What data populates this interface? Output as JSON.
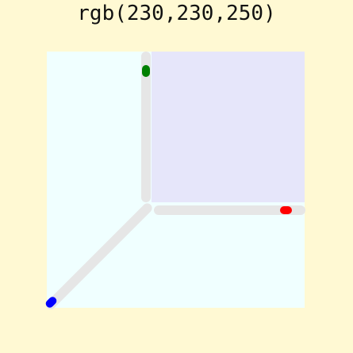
{
  "title": "rgb(230,230,250)",
  "color": {
    "r": 230,
    "g": 230,
    "b": 250,
    "hex": "#e6e6fa"
  },
  "colors": {
    "page_background": "#fff9d3",
    "picker_background": "#f0ffff",
    "track": "#e6e6e6",
    "red_handle": "#ff0000",
    "green_handle": "#008000",
    "blue_handle": "#0000ff"
  },
  "sliders": {
    "red": {
      "label": "red",
      "value": 230,
      "max": 255
    },
    "green": {
      "label": "green",
      "value": 230,
      "max": 255
    },
    "blue": {
      "label": "blue",
      "value": 250,
      "max": 255
    }
  }
}
